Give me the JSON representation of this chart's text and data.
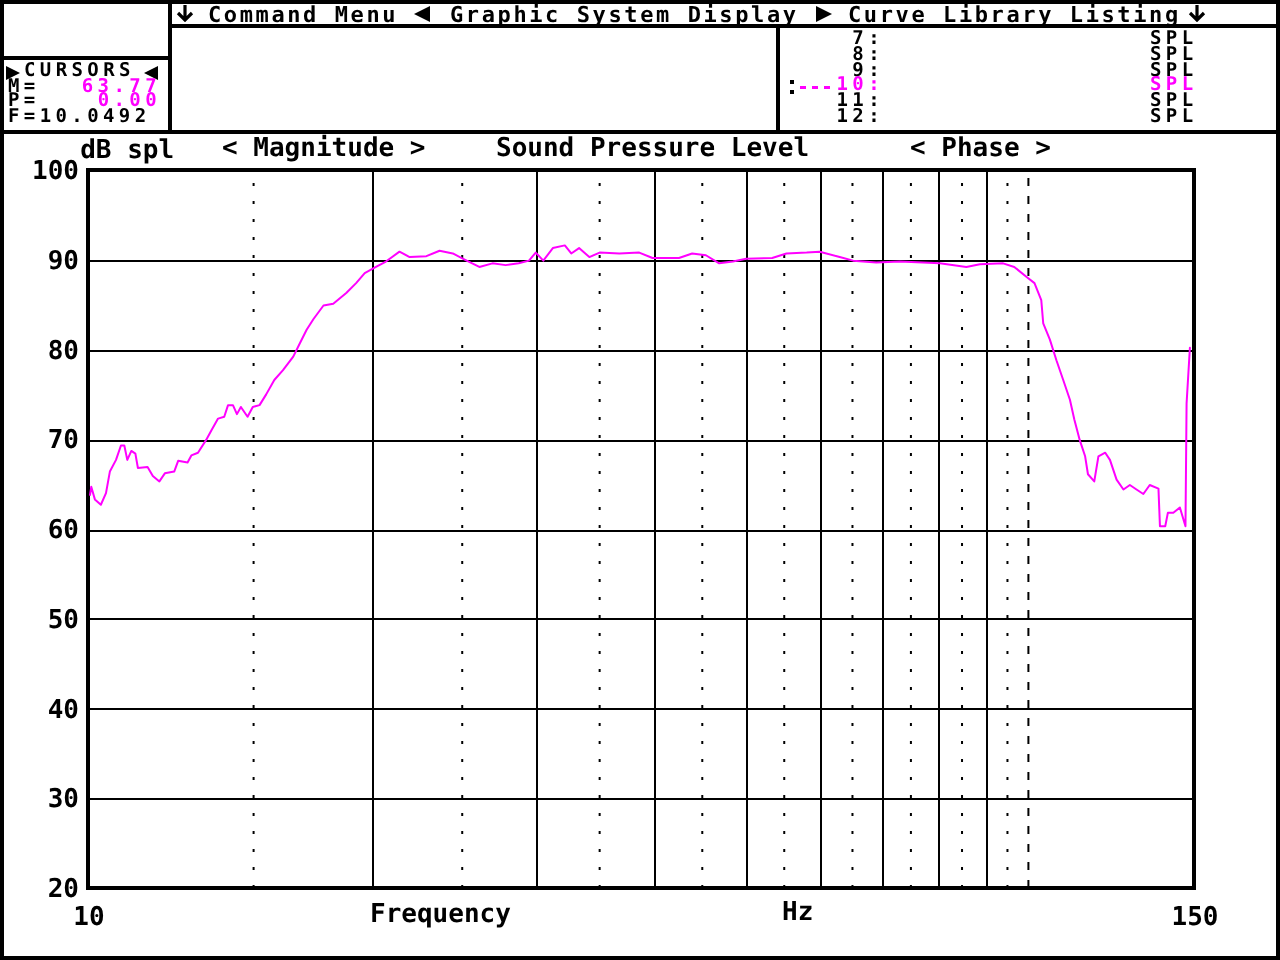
{
  "chart_data": {
    "type": "line",
    "title": "Sound Pressure Level",
    "xlabel": "Frequency",
    "ylabel": "dB spl",
    "annotations": [
      "Command Menu",
      "Graphic System Display",
      "Curve Library Listing",
      "CURSORS",
      "M=",
      "63.77",
      "P=",
      "0.00",
      "F=10.0492",
      "7:",
      "SPL",
      "8:",
      "SPL",
      "9:",
      "SPL",
      "10:",
      "SPL",
      "11:",
      "SPL",
      "12:",
      "SPL",
      "< Magnitude >",
      "< Phase >",
      "Hz"
    ],
    "x": [
      10.05,
      10.08,
      10.17,
      10.32,
      10.45,
      10.55,
      10.71,
      10.84,
      10.93,
      11.01,
      11.12,
      11.23,
      11.3,
      11.57,
      11.72,
      11.91,
      12.07,
      12.35,
      12.47,
      12.76,
      12.88,
      13.09,
      13.35,
      13.53,
      13.75,
      13.96,
      14.09,
      14.26,
      14.4,
      14.54,
      14.78,
      14.97,
      15.22,
      15.47,
      15.78,
      16.12,
      16.53,
      16.8,
      17.08,
      17.37,
      17.8,
      18.23,
      18.82,
      19.28,
      19.69,
      20.24,
      20.74,
      21.44,
      21.98,
      22.9,
      23.65,
      24.43,
      25.27,
      26.07,
      26.92,
      27.8,
      28.71,
      29.44,
      29.93,
      30.49,
      31.21,
      32.14,
      32.65,
      33.28,
      34.13,
      35,
      36.73,
      38.56,
      39.84,
      42.5,
      43.9,
      45.4,
      46.9,
      48.5,
      50.1,
      53.4,
      55.3,
      58.1,
      60,
      63,
      65.1,
      68.9,
      73,
      80.5,
      85.9,
      88.8,
      94,
      96.6,
      99.5,
      101.5,
      103.2,
      103.7,
      105.4,
      107.1,
      108.9,
      110.7,
      111.9,
      113.4,
      114.9,
      115.7,
      117.5,
      118.7,
      120.7,
      122.1,
      124.1,
      126.2,
      128.2,
      130.3,
      132.5,
      134.6,
      137.5,
      138,
      139.8,
      140.7,
      142.6,
      144.9,
      146.9,
      147.3,
      148.5
    ],
    "series": [
      {
        "color": "#ff00ff",
        "values": [
          63.8,
          64.7,
          63.3,
          62.7,
          64.0,
          66.4,
          67.7,
          69.3,
          69.3,
          67.7,
          68.7,
          68.4,
          66.8,
          66.9,
          65.9,
          65.3,
          66.2,
          66.4,
          67.6,
          67.4,
          68.2,
          68.5,
          69.9,
          71.0,
          72.3,
          72.5,
          73.8,
          73.8,
          72.8,
          73.6,
          72.5,
          73.6,
          73.8,
          75.0,
          76.6,
          77.7,
          79.2,
          80.7,
          82.2,
          83.4,
          84.9,
          85.1,
          86.3,
          87.4,
          88.5,
          89.2,
          89.8,
          90.9,
          90.3,
          90.4,
          91.0,
          90.7,
          89.9,
          89.2,
          89.6,
          89.4,
          89.6,
          89.9,
          90.8,
          89.9,
          91.3,
          91.6,
          90.7,
          91.3,
          90.3,
          90.8,
          90.7,
          90.8,
          90.2,
          90.2,
          90.7,
          90.5,
          89.6,
          89.8,
          90.1,
          90.2,
          90.7,
          90.8,
          90.9,
          90.3,
          89.9,
          89.7,
          89.8,
          89.6,
          89.2,
          89.5,
          89.6,
          89.2,
          88.1,
          87.4,
          85.5,
          82.9,
          81.1,
          78.8,
          76.6,
          74.4,
          72.2,
          69.9,
          68.1,
          66.1,
          65.3,
          68.1,
          68.5,
          67.7,
          65.5,
          64.4,
          64.9,
          64.4,
          63.9,
          64.9,
          64.5,
          60.3,
          60.3,
          61.8,
          61.8,
          62.4,
          60.3,
          74.0,
          80.2
        ]
      }
    ],
    "log": "x",
    "xlim": [
      10,
      150
    ],
    "ylim": [
      20,
      100
    ],
    "xticks": [
      10,
      {
        "value": 20,
        "label": null
      },
      {
        "value": 30,
        "label": null
      },
      {
        "value": 40,
        "label": null
      },
      {
        "value": 50,
        "label": null
      },
      {
        "value": 60,
        "label": null
      },
      {
        "value": 70,
        "label": null
      },
      {
        "value": 80,
        "label": null
      },
      {
        "value": 90,
        "label": null
      },
      150
    ],
    "yticks": [
      20,
      30,
      40,
      50,
      60,
      70,
      80,
      90,
      100
    ],
    "grid": true,
    "ref_lines": [
      {
        "axis": "x",
        "value": 15,
        "line_style": "dotted"
      },
      {
        "axis": "x",
        "value": 25,
        "line_style": "dotted"
      },
      {
        "axis": "x",
        "value": 35,
        "line_style": "dotted"
      },
      {
        "axis": "x",
        "value": 45,
        "line_style": "dotted"
      },
      {
        "axis": "x",
        "value": 55,
        "line_style": "dotted"
      },
      {
        "axis": "x",
        "value": 65,
        "line_style": "dotted"
      },
      {
        "axis": "x",
        "value": 75,
        "line_style": "dotted"
      },
      {
        "axis": "x",
        "value": 85,
        "line_style": "dotted"
      },
      {
        "axis": "x",
        "value": 95,
        "line_style": "dotted"
      },
      {
        "axis": "x",
        "value": 100,
        "line_style": "dashed"
      }
    ]
  }
}
